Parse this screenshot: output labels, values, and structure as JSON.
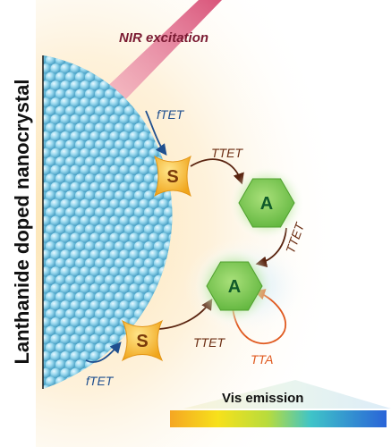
{
  "labels": {
    "side_title": "Lanthanide doped nanocrystal",
    "nir": "NIR excitation",
    "ftet_top": "fTET",
    "ftet_bottom": "fTET",
    "ttet_1": "TTET",
    "ttet_2": "TTET",
    "ttet_3": "TTET",
    "tta": "TTA",
    "vis": "Vis emission"
  },
  "molecules": {
    "sensitizer_top": "S",
    "sensitizer_bottom": "S",
    "annihilator_top": "A",
    "annihilator_bottom": "A"
  },
  "colors": {
    "nanocrystal": "#8fd3ea",
    "sensitizer": "#f5b82a",
    "annihilator": "#6dc24a",
    "laser": "#d9557a",
    "glow": "#fde6b8"
  }
}
